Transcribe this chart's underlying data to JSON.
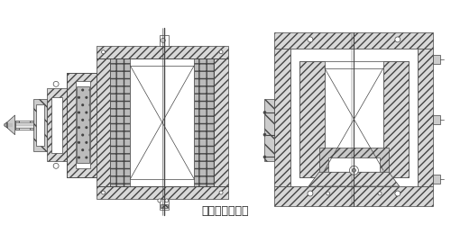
{
  "title": "（三）防爆装置",
  "title_fontsize": 9,
  "bg_color": "#ffffff",
  "line_color": "#444444",
  "fig_width": 5.0,
  "fig_height": 2.5,
  "dpi": 100
}
